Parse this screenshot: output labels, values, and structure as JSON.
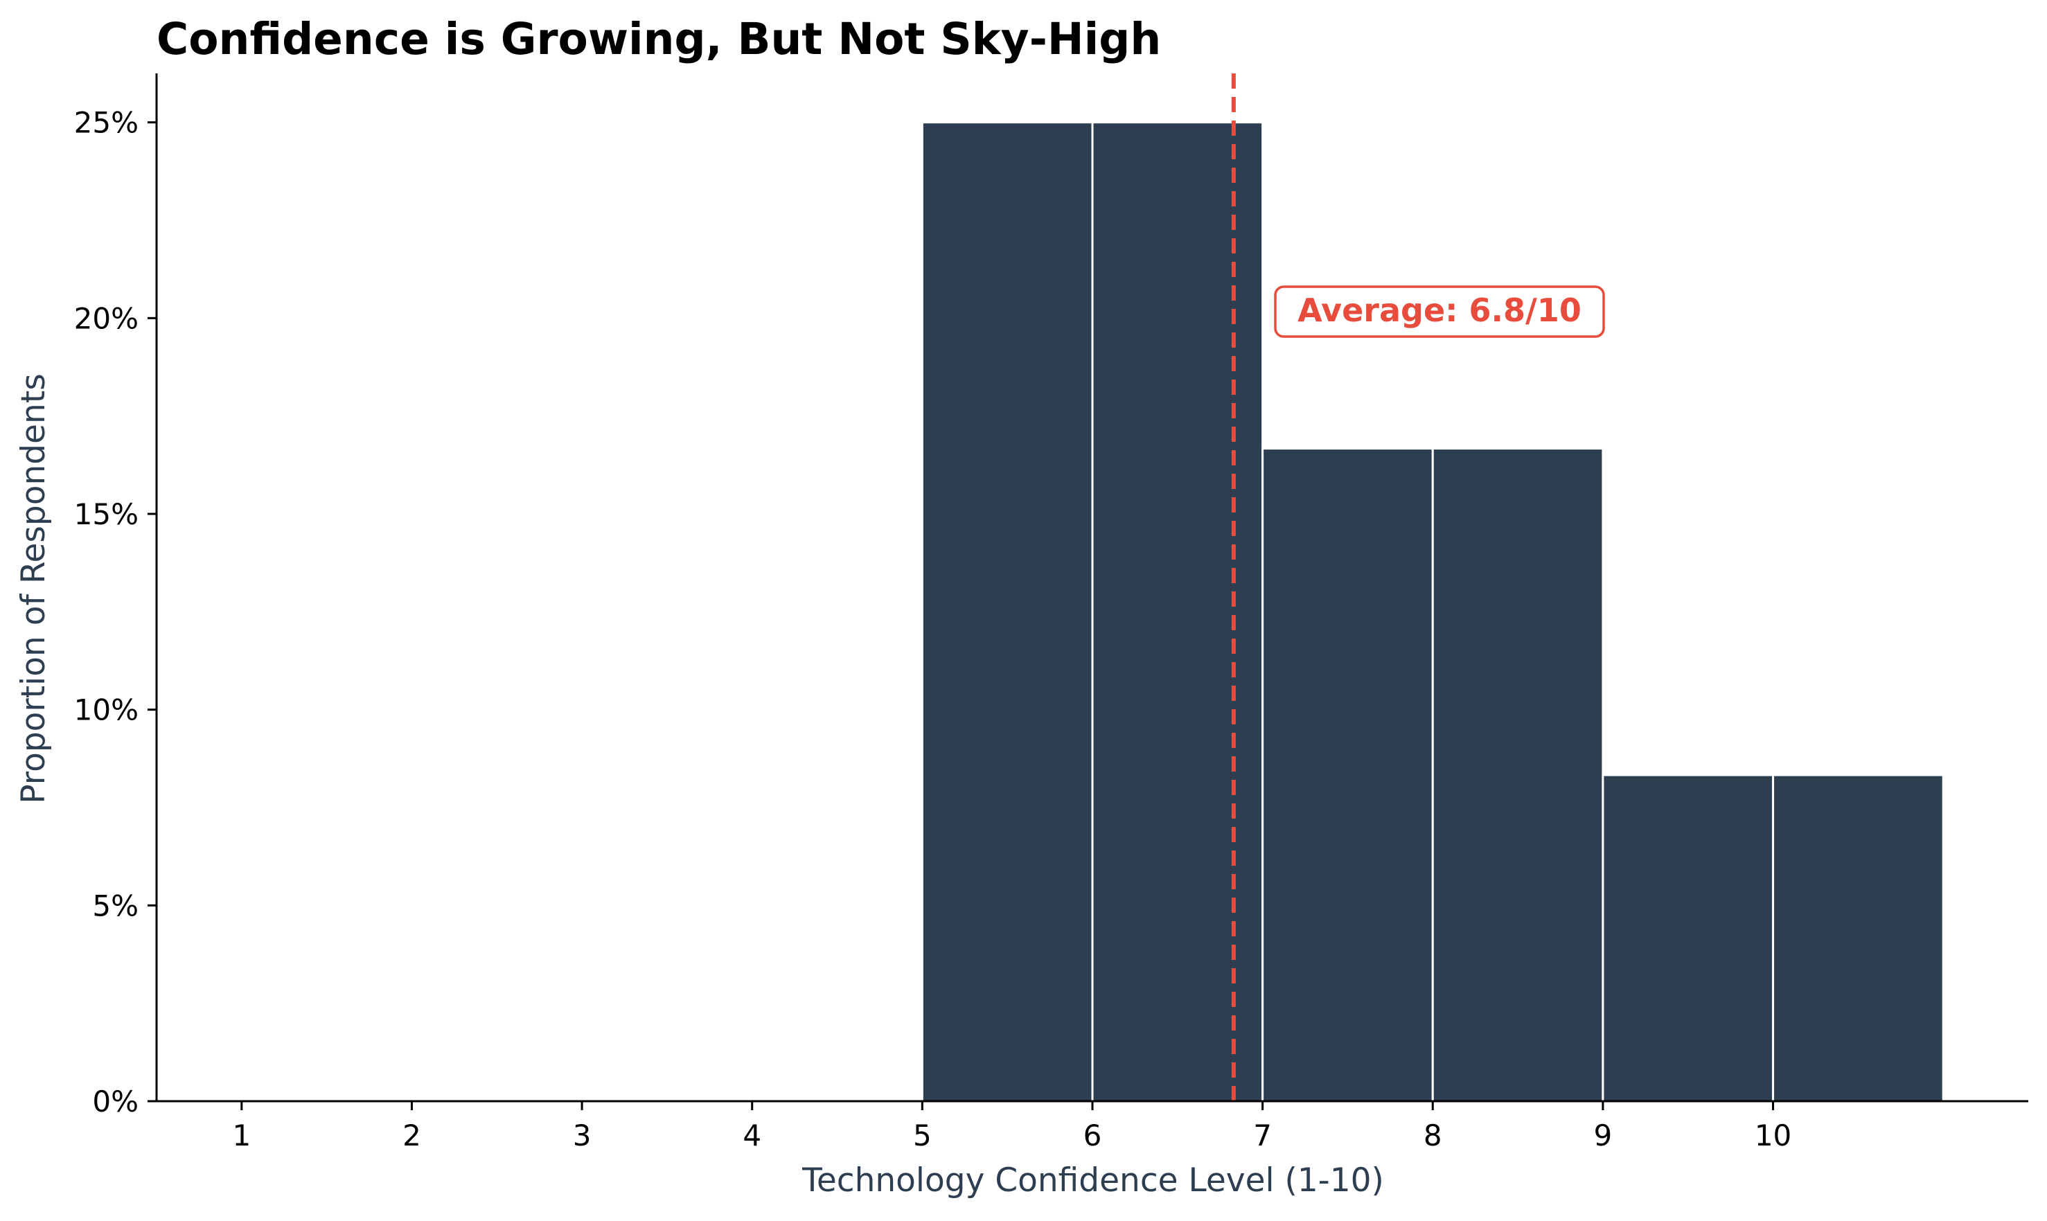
{
  "chart_data": {
    "type": "bar",
    "title": "Confidence is Growing, But Not Sky-High",
    "xlabel": "Technology Confidence Level (1-10)",
    "ylabel": "Proportion of Respondents",
    "x_ticks": [
      "1",
      "2",
      "3",
      "4",
      "5",
      "6",
      "7",
      "8",
      "9",
      "10"
    ],
    "y_ticks": [
      "0%",
      "5%",
      "10%",
      "15%",
      "20%",
      "25%"
    ],
    "y_tick_values": [
      0,
      5,
      10,
      15,
      20,
      25
    ],
    "xlim": [
      0.5,
      11.5
    ],
    "ylim": [
      0,
      26.25
    ],
    "bins": [
      {
        "start": 5,
        "end": 6,
        "value": 25.0
      },
      {
        "start": 6,
        "end": 7,
        "value": 25.0
      },
      {
        "start": 7,
        "end": 8,
        "value": 16.67
      },
      {
        "start": 8,
        "end": 9,
        "value": 16.67
      },
      {
        "start": 9,
        "end": 10,
        "value": 8.33
      },
      {
        "start": 10,
        "end": 11,
        "value": 8.33
      }
    ],
    "average": {
      "value": 6.83,
      "label": "Average: 6.8/10"
    },
    "grid": false,
    "colors": {
      "bar": "#2c3e50",
      "bar_edge": "#ffffff",
      "average_line": "#e74c3c",
      "axis_label": "#2c3e50",
      "text": "#000000"
    }
  }
}
